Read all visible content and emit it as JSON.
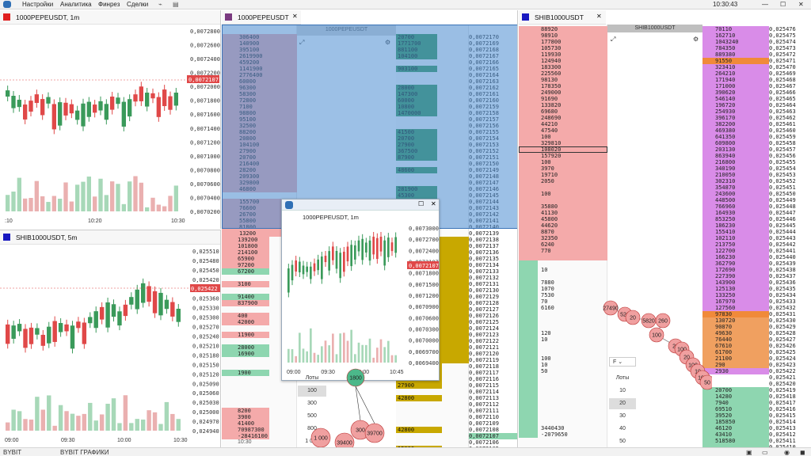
{
  "menu": {
    "items": [
      "Настройки",
      "Аналитика",
      "Финрез",
      "Сделки"
    ],
    "clock": "10:30:43"
  },
  "status": {
    "exchange": "BYBIT",
    "charts": "BYBIT ГРАФИКИ"
  },
  "colors": {
    "bull": "#3a9a5a",
    "bear": "#e04848",
    "ask_bg": "#f4aaaa",
    "bid_bg": "#8ed6b0",
    "gold": "#c8a800",
    "violet": "#d98ce8",
    "overlay": "#5a9bd5"
  },
  "chart1": {
    "title": "1000PEPEUSDT, 1m",
    "current": "0,0072107",
    "prices": [
      "0,0072800",
      "0,0072600",
      "0,0072400",
      "0,0072200",
      "0,0072000",
      "0,0071800",
      "0,0071600",
      "0,0071400",
      "0,0071200",
      "0,0071000",
      "0,0070800",
      "0,0070600",
      "0,0070400",
      "0,0070200"
    ],
    "times": [
      ":10",
      "10:20",
      "10:30"
    ]
  },
  "chart2": {
    "title": "SHIB1000USDT, 5m",
    "current": "0,025422",
    "prices": [
      "0,025510",
      "0,025480",
      "0,025450",
      "0,025420",
      "0,025390",
      "0,025360",
      "0,025330",
      "0,025300",
      "0,025270",
      "0,025240",
      "0,025210",
      "0,025180",
      "0,025150",
      "0,025120",
      "0,025090",
      "0,025060",
      "0,025030",
      "0,025000",
      "0,024970",
      "0,024940"
    ],
    "times": [
      "09:00",
      "09:30",
      "10:00",
      "10:30"
    ]
  },
  "pepe_dom": {
    "tab_title": "1000PEPEUSDT",
    "header": "1000PEPEUSDT",
    "ask_vols": [
      "306400",
      "140900",
      "395100",
      "2619900",
      "459200",
      "1141900",
      "2776400",
      "60000",
      "96300",
      "58300",
      "72800",
      "7100",
      "98800",
      "95100",
      "32500",
      "88200",
      "20800",
      "104100",
      "27900",
      "20700",
      "216400",
      "28200",
      "209300",
      "329800",
      "46800",
      "",
      "155700",
      "76600",
      "26700",
      "55800",
      "81800",
      "13200"
    ],
    "mid_vols": [
      "20700",
      "1771700",
      "881100",
      "104100",
      "",
      "903100",
      "",
      "",
      "28000",
      "147300",
      "60000",
      "10800",
      "1470000",
      "",
      "",
      "41500",
      "20700",
      "27900",
      "367500",
      "87900",
      "",
      "48600",
      "",
      "",
      "281900",
      "45300",
      "42800",
      "82900",
      "",
      "",
      "",
      ""
    ],
    "prices_top": [
      "0,0072170",
      "0,0072169",
      "0,0072168",
      "0,0072167",
      "0,0072166",
      "0,0072165",
      "0,0072164",
      "0,0072163",
      "0,0072162",
      "0,0072161",
      "0,0072160",
      "0,0072159",
      "0,0072158",
      "0,0072157",
      "0,0072156",
      "0,0072155",
      "0,0072154",
      "0,0072153",
      "0,0072152",
      "0,0072151",
      "0,0072150",
      "0,0072149",
      "0,0072148",
      "0,0072147",
      "0,0072146",
      "0,0072145",
      "0,0072144",
      "0,0072143",
      "0,0072142",
      "0,0072141",
      "0,0072140",
      "0,0072139"
    ],
    "prices_bottom": [
      "0,0072138",
      "0,0072137",
      "0,0072136",
      "0,0072135",
      "0,0072134",
      "0,0072133",
      "0,0072132",
      "0,0072131",
      "0,0072130",
      "0,0072129",
      "0,0072128",
      "0,0072127",
      "0,0072126",
      "0,0072125",
      "0,0072124",
      "0,0072123",
      "0,0072122",
      "0,0072121",
      "0,0072120",
      "0,0072119",
      "0,0072118",
      "0,0072117",
      "0,0072116",
      "0,0072115",
      "0,0072114",
      "0,0072113",
      "0,0072112",
      "0,0072111",
      "0,0072110",
      "0,0072109",
      "0,0072108",
      "0,0072107",
      "0,0072106",
      "0,0072105",
      "0,0072104"
    ],
    "left_lower": [
      "139200",
      "101800",
      "214100",
      "65900",
      "97200",
      "67200",
      "",
      "3100",
      "",
      "91400",
      "837900",
      "",
      "400",
      "42000",
      "",
      "11900",
      "",
      "28000",
      "16900",
      "",
      "",
      "1900",
      "",
      "",
      "",
      "",
      "",
      "8200",
      "3900",
      "41400",
      "70987300",
      "-28416100"
    ],
    "mid_lower": [
      "27900",
      "102800",
      "20700",
      "27900",
      "",
      "42800",
      "",
      "",
      "",
      "",
      "42800",
      "",
      "",
      "15000",
      "9000"
    ],
    "time": "10:30"
  },
  "popup": {
    "title": "1000PEPEUSDT, 1m",
    "prices": [
      "0,0073000",
      "0,0072700",
      "0,0072400",
      "0,0072107",
      "0,0071800",
      "0,0071500",
      "0,0071200",
      "0,0070900",
      "0,0070600",
      "0,0070300",
      "0,0070000",
      "0,0069700",
      "0,0069400"
    ],
    "current": "0,0072107",
    "times": [
      "09:00",
      "09:30",
      "10:00",
      "10:45"
    ]
  },
  "lots": {
    "label": "Лоты",
    "values": [
      "100",
      "300",
      "500",
      "800",
      "1 000"
    ]
  },
  "bubbles": [
    "1800",
    "300",
    "39700",
    "39400",
    "1 000"
  ],
  "shib_dom": {
    "tab_title": "SHIB1000USDT",
    "header": "SHIB1000USDT",
    "ask_vols": [
      "88920",
      "98910",
      "177800",
      "105730",
      "119930",
      "124940",
      "183300",
      "225560",
      "98130",
      "178350",
      "249000",
      "91690",
      "133820",
      "69680",
      "248690",
      "44210",
      "47540",
      "100",
      "329810",
      "108020",
      "157920",
      "100",
      "3970",
      "19710",
      "2050",
      "",
      "100",
      "",
      "35880",
      "41130",
      "45800",
      "44620",
      "8870",
      "32350",
      "6240",
      "770",
      "",
      "",
      "10",
      "",
      "7880",
      "1070",
      "7530",
      "70",
      "6160",
      "",
      "",
      "",
      "120",
      "10",
      "",
      "",
      "100",
      "10",
      "50",
      "",
      "",
      "",
      "",
      "",
      "",
      "",
      "",
      "3440430",
      "-2079650"
    ],
    "right_prices": [
      "0,025476",
      "0,025475",
      "0,025474",
      "0,025473",
      "0,025472",
      "0,025471",
      "0,025470",
      "0,025469",
      "0,025468",
      "0,025467",
      "0,025466",
      "0,025465",
      "0,025464",
      "0,025463",
      "0,025462",
      "0,025461",
      "0,025460",
      "0,025459",
      "0,025458",
      "0,025457",
      "0,025456",
      "0,025455",
      "0,025454",
      "0,025453",
      "0,025452",
      "0,025451",
      "0,025450",
      "0,025449",
      "0,025448",
      "0,025447",
      "0,025446",
      "0,025445",
      "0,025444",
      "0,025443",
      "0,025442",
      "0,025441",
      "0,025440",
      "0,025439",
      "0,025438",
      "0,025437",
      "0,025436",
      "0,025435",
      "0,025434",
      "0,025433",
      "0,025432",
      "0,025431",
      "0,025430",
      "0,025429",
      "0,025428",
      "0,025427",
      "0,025426",
      "0,025425",
      "0,025424",
      "0,025423",
      "0,025422",
      "0,025421",
      "0,025420",
      "0,025419",
      "0,025418",
      "0,025417",
      "0,025416",
      "0,025415",
      "0,025414",
      "0,025413",
      "0,025412",
      "0,025411",
      "0,025410"
    ],
    "right_vols": [
      "70110",
      "162710",
      "1043240",
      "784350",
      "889380",
      "91550",
      "323410",
      "264210",
      "171940",
      "171000",
      "390620",
      "546140",
      "196720",
      "254930",
      "396170",
      "382200",
      "469380",
      "641350",
      "609800",
      "203130",
      "863940",
      "216800",
      "340190",
      "210050",
      "302310",
      "354870",
      "243600",
      "448500",
      "766960",
      "164930",
      "853250",
      "186230",
      "155410",
      "102110",
      "213750",
      "122700",
      "166230",
      "362790",
      "172690",
      "227390",
      "143900",
      "125130",
      "133250",
      "167970",
      "127560",
      "97830",
      "130720",
      "90870",
      "49630",
      "76440",
      "67610",
      "61700",
      "21100",
      "290",
      "2930",
      "",
      "",
      "20700",
      "14280",
      "7940",
      "69510",
      "39520",
      "185850",
      "46120",
      "43410",
      "518580"
    ],
    "lots_label": "Лоты",
    "lots": [
      "10",
      "20",
      "30",
      "40",
      "50"
    ],
    "filter": "F",
    "bubbles": [
      "27490",
      "520",
      "20",
      "5820",
      "260",
      "100",
      "20",
      "100",
      "20",
      "100",
      "10",
      "100",
      "50"
    ]
  }
}
